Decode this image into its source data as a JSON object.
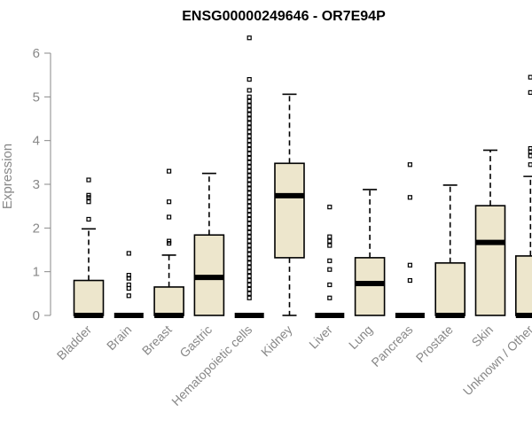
{
  "chart_data": {
    "type": "boxplot",
    "title": "ENSG00000249646 - OR7E94P",
    "xlabel": "",
    "ylabel": "Expression",
    "ylim": [
      0,
      6
    ],
    "yticks": [
      0,
      1,
      2,
      3,
      4,
      5,
      6
    ],
    "grid": false,
    "colors": {
      "box_fill": "#ede6cc",
      "box_stroke": "#000000",
      "axis": "#888888"
    },
    "categories": [
      "Bladder",
      "Brain",
      "Breast",
      "Gastric",
      "Hematopoietic cells",
      "Kidney",
      "Liver",
      "Lung",
      "Pancreas",
      "Prostate",
      "Skin",
      "Unknown / Other"
    ],
    "boxes": [
      {
        "min": 0,
        "q1": 0,
        "median": 0,
        "q3": 0.8,
        "max": 1.98,
        "outliers": [
          2.2,
          2.6,
          2.7,
          2.75,
          3.1
        ]
      },
      {
        "min": 0,
        "q1": 0,
        "median": 0,
        "q3": 0,
        "max": 0,
        "outliers": [
          0.45,
          0.62,
          0.7,
          0.85,
          0.92,
          1.42
        ]
      },
      {
        "min": 0,
        "q1": 0,
        "median": 0,
        "q3": 0.65,
        "max": 1.38,
        "outliers": [
          1.65,
          1.7,
          2.25,
          2.6,
          3.3
        ]
      },
      {
        "min": 0,
        "q1": 0,
        "median": 0.87,
        "q3": 1.84,
        "max": 3.25,
        "outliers": []
      },
      {
        "min": 0,
        "q1": 0,
        "median": 0,
        "q3": 0,
        "max": 0,
        "outliers": [
          0.4,
          0.5,
          0.6,
          0.7,
          0.8,
          0.9,
          1.0,
          1.1,
          1.2,
          1.3,
          1.4,
          1.5,
          1.6,
          1.7,
          1.8,
          1.9,
          2.0,
          2.1,
          2.2,
          2.3,
          2.4,
          2.5,
          2.6,
          2.7,
          2.8,
          2.9,
          3.0,
          3.1,
          3.2,
          3.3,
          3.4,
          3.5,
          3.6,
          3.7,
          3.8,
          3.9,
          4.0,
          4.1,
          4.2,
          4.3,
          4.4,
          4.5,
          4.6,
          4.7,
          4.8,
          4.9,
          5.0,
          5.15,
          5.4,
          6.35
        ]
      },
      {
        "min": 0,
        "q1": 1.32,
        "median": 2.74,
        "q3": 3.48,
        "max": 5.06,
        "outliers": []
      },
      {
        "min": 0,
        "q1": 0,
        "median": 0,
        "q3": 0,
        "max": 0,
        "outliers": [
          0.4,
          0.7,
          1.05,
          1.25,
          1.6,
          1.7,
          1.8,
          2.48
        ]
      },
      {
        "min": 0,
        "q1": 0,
        "median": 0.73,
        "q3": 1.32,
        "max": 2.88,
        "outliers": []
      },
      {
        "min": 0,
        "q1": 0,
        "median": 0,
        "q3": 0,
        "max": 0,
        "outliers": [
          0.8,
          1.15,
          2.7,
          3.45
        ]
      },
      {
        "min": 0,
        "q1": 0,
        "median": 0,
        "q3": 1.2,
        "max": 2.98,
        "outliers": []
      },
      {
        "min": 0,
        "q1": 0,
        "median": 1.67,
        "q3": 2.51,
        "max": 3.78,
        "outliers": []
      },
      {
        "min": 0,
        "q1": 0,
        "median": 0,
        "q3": 1.36,
        "max": 3.18,
        "outliers": [
          3.45,
          3.65,
          3.75,
          3.82,
          5.1,
          5.45
        ]
      }
    ]
  }
}
